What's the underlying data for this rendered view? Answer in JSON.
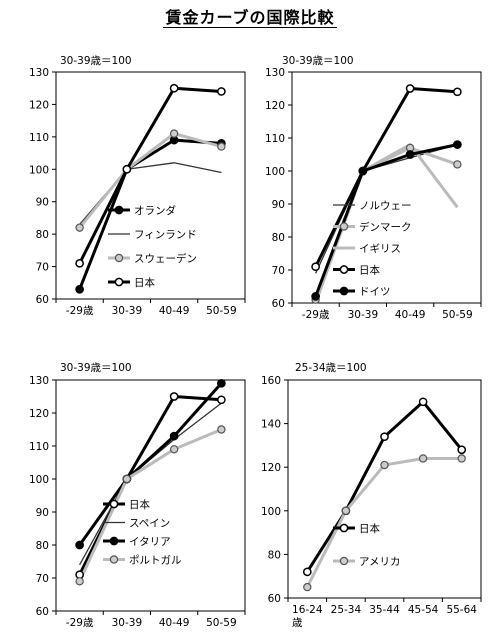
{
  "title": "賃金カーブの国際比較",
  "colors": {
    "black": "#000000",
    "gray": "#bbbbbb",
    "marker_gray": "#cccccc",
    "dark": "#333333"
  },
  "chart_data": [
    {
      "type": "line",
      "note": "30-39歳＝100",
      "x": [
        "-29歳",
        "30-39",
        "40-49",
        "50-59"
      ],
      "ylim": [
        60,
        130
      ],
      "yticks": [
        60,
        70,
        80,
        90,
        100,
        110,
        120,
        130
      ],
      "grid": false,
      "legend": "bottom-right",
      "series": [
        {
          "name": "オランダ",
          "values": [
            63,
            100,
            109,
            108
          ],
          "style": "black-thick-filled"
        },
        {
          "name": "フィンランド",
          "values": [
            83,
            100,
            102,
            99
          ],
          "style": "black-thin-none"
        },
        {
          "name": "スウェーデン",
          "values": [
            82,
            100,
            111,
            107
          ],
          "style": "gray-thick-gray"
        },
        {
          "name": "日本",
          "values": [
            71,
            100,
            125,
            124
          ],
          "style": "black-thick-open"
        }
      ]
    },
    {
      "type": "line",
      "note": "30-39歳＝100",
      "x": [
        "-29歳",
        "30-39",
        "40-49",
        "50-59"
      ],
      "ylim": [
        60,
        130
      ],
      "yticks": [
        60,
        70,
        80,
        90,
        100,
        110,
        120,
        130
      ],
      "grid": false,
      "legend": "bottom-center",
      "series": [
        {
          "name": "ノルウェー",
          "values": [
            69,
            100,
            104,
            108
          ],
          "style": "black-thin-none"
        },
        {
          "name": "デンマーク",
          "values": [
            61,
            100,
            107,
            102
          ],
          "style": "gray-thick-gray"
        },
        {
          "name": "イギリス",
          "values": [
            60,
            100,
            108,
            89
          ],
          "style": "gray-thick-none"
        },
        {
          "name": "日本",
          "values": [
            71,
            100,
            125,
            124
          ],
          "style": "black-thick-open"
        },
        {
          "name": "ドイツ",
          "values": [
            62,
            100,
            105,
            108
          ],
          "style": "black-thick-filled"
        }
      ]
    },
    {
      "type": "line",
      "note": "30-39歳＝100",
      "x": [
        "-29歳",
        "30-39",
        "40-49",
        "50-59"
      ],
      "ylim": [
        60,
        130
      ],
      "yticks": [
        60,
        70,
        80,
        90,
        100,
        110,
        120,
        130
      ],
      "grid": false,
      "legend": "bottom-center",
      "series": [
        {
          "name": "日本",
          "values": [
            71,
            100,
            125,
            124
          ],
          "style": "black-thick-open"
        },
        {
          "name": "スペイン",
          "values": [
            74,
            100,
            112,
            123
          ],
          "style": "black-thin-none"
        },
        {
          "name": "イタリア",
          "values": [
            80,
            100,
            113,
            129
          ],
          "style": "black-thick-filled"
        },
        {
          "name": "ポルトガル",
          "values": [
            69,
            100,
            109,
            115
          ],
          "style": "gray-thick-gray"
        }
      ]
    },
    {
      "type": "line",
      "note": "25-34歳＝100",
      "x": [
        "16-24\n歳",
        "25-34",
        "35-44",
        "45-54",
        "55-64"
      ],
      "ylim": [
        60,
        160
      ],
      "yticks": [
        60,
        80,
        100,
        120,
        140,
        160
      ],
      "grid": false,
      "legend": "bottom-center",
      "series": [
        {
          "name": "日本",
          "values": [
            72,
            100,
            134,
            150,
            128
          ],
          "style": "black-thick-open"
        },
        {
          "name": "アメリカ",
          "values": [
            65,
            100,
            121,
            124,
            124
          ],
          "style": "gray-thick-gray"
        }
      ]
    }
  ]
}
